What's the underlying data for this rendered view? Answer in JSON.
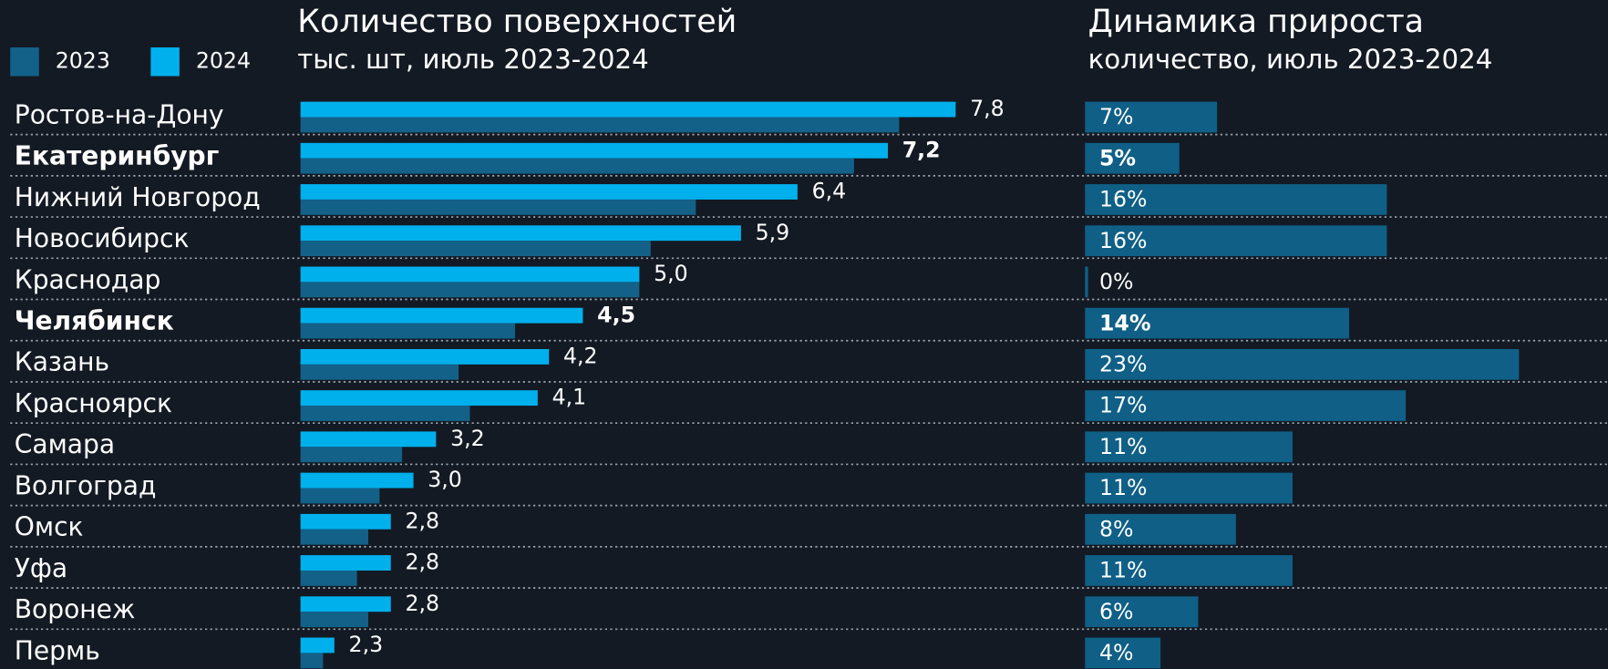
{
  "chart_data": [
    {
      "type": "bar",
      "title": "Количество поверхностей",
      "subtitle": "тыс. шт, июль 2023-2024",
      "categories": [
        "Ростов-на-Дону",
        "Екатеринбург",
        "Нижний Новгород",
        "Новосибирск",
        "Краснодар",
        "Челябинск",
        "Казань",
        "Красноярск",
        "Самара",
        "Волгоград",
        "Омск",
        "Уфа",
        "Воронеж",
        "Пермь"
      ],
      "series": [
        {
          "name": "2023",
          "color": "#136188",
          "values": [
            7.3,
            6.9,
            5.5,
            5.1,
            5.0,
            3.9,
            3.4,
            3.5,
            2.9,
            2.7,
            2.6,
            2.5,
            2.6,
            2.2
          ]
        },
        {
          "name": "2024",
          "color": "#00b0ec",
          "values": [
            7.8,
            7.2,
            6.4,
            5.9,
            5.0,
            4.5,
            4.2,
            4.1,
            3.2,
            3.0,
            2.8,
            2.8,
            2.8,
            2.3
          ],
          "value_labels": [
            "7,8",
            "7,2",
            "6,4",
            "5,9",
            "5,0",
            "4,5",
            "4,2",
            "4,1",
            "3,2",
            "3,0",
            "2,8",
            "2,8",
            "2,8",
            "2,3"
          ]
        }
      ],
      "xlim": [
        2.0,
        8.6
      ],
      "highlight": [
        1,
        5
      ],
      "highlight_color": "#f5c12e"
    },
    {
      "type": "bar",
      "title": "Динамика прироста",
      "subtitle": "количество, июль 2023-2024",
      "values": [
        7,
        5,
        16,
        16,
        0,
        14,
        23,
        17,
        11,
        11,
        8,
        11,
        6,
        4
      ],
      "value_labels": [
        "7%",
        "5%",
        "16%",
        "16%",
        "0%",
        "14%",
        "23%",
        "17%",
        "11%",
        "11%",
        "8%",
        "11%",
        "6%",
        "4%"
      ],
      "color": "#0f5f86",
      "xlim": [
        0,
        25
      ]
    }
  ]
}
